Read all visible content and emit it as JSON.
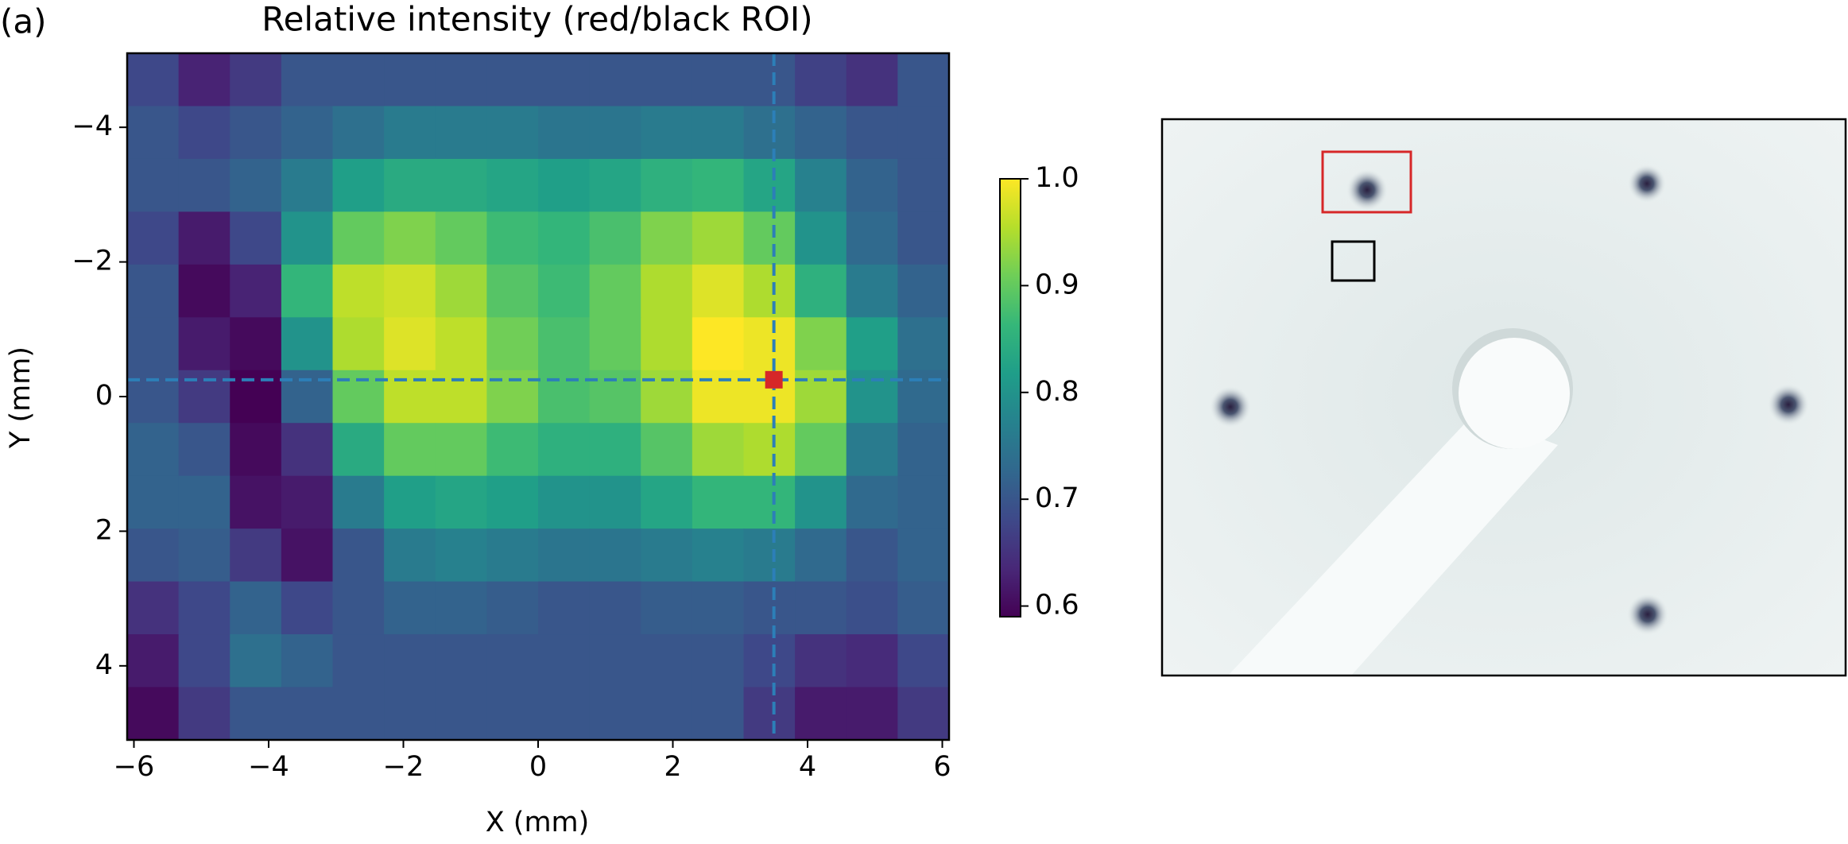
{
  "chart_data": {
    "type": "heatmap",
    "panel_label": "(a)",
    "title": "Relative intensity (red/black ROI)",
    "x_label": "X (mm)",
    "y_label": "Y (mm)",
    "xlim": [
      -6.1,
      6.1
    ],
    "ylim": [
      -5.1,
      5.1
    ],
    "xticks": [
      {
        "value": -6,
        "label": "−6"
      },
      {
        "value": -4,
        "label": "−4"
      },
      {
        "value": -2,
        "label": "−2"
      },
      0,
      2,
      4,
      6
    ],
    "yticks": [
      {
        "value": -4,
        "label": "−4"
      },
      {
        "value": -2,
        "label": "−2"
      },
      0,
      2,
      4
    ],
    "colormap": "viridis",
    "clim": [
      0.59,
      1.0
    ],
    "cticks": [
      0.6,
      0.7,
      0.8,
      0.9,
      {
        "value": 1,
        "label": "1.0"
      }
    ],
    "crosshair": {
      "x": 3.5,
      "y": -0.25,
      "color": "#2c7fb8",
      "marker_color": "#d62728"
    },
    "z": [
      [
        0.68,
        0.63,
        0.66,
        0.7,
        0.7,
        0.7,
        0.7,
        0.7,
        0.7,
        0.7,
        0.7,
        0.7,
        0.7,
        0.67,
        0.65,
        0.7
      ],
      [
        0.7,
        0.68,
        0.7,
        0.72,
        0.74,
        0.76,
        0.76,
        0.76,
        0.75,
        0.75,
        0.76,
        0.76,
        0.74,
        0.72,
        0.7,
        0.7
      ],
      [
        0.7,
        0.7,
        0.72,
        0.76,
        0.82,
        0.84,
        0.84,
        0.83,
        0.82,
        0.83,
        0.85,
        0.86,
        0.83,
        0.77,
        0.72,
        0.7
      ],
      [
        0.68,
        0.62,
        0.68,
        0.8,
        0.9,
        0.92,
        0.9,
        0.87,
        0.86,
        0.88,
        0.92,
        0.94,
        0.9,
        0.8,
        0.73,
        0.7
      ],
      [
        0.7,
        0.6,
        0.63,
        0.86,
        0.96,
        0.97,
        0.94,
        0.89,
        0.87,
        0.9,
        0.95,
        0.98,
        0.95,
        0.85,
        0.76,
        0.72
      ],
      [
        0.7,
        0.62,
        0.6,
        0.8,
        0.95,
        0.98,
        0.96,
        0.91,
        0.88,
        0.9,
        0.95,
        1.0,
        0.99,
        0.92,
        0.82,
        0.74
      ],
      [
        0.7,
        0.66,
        0.59,
        0.72,
        0.9,
        0.96,
        0.96,
        0.92,
        0.88,
        0.89,
        0.94,
        0.99,
        0.99,
        0.94,
        0.8,
        0.73
      ],
      [
        0.72,
        0.7,
        0.6,
        0.65,
        0.84,
        0.9,
        0.9,
        0.87,
        0.85,
        0.85,
        0.89,
        0.94,
        0.95,
        0.9,
        0.76,
        0.72
      ],
      [
        0.72,
        0.72,
        0.61,
        0.62,
        0.76,
        0.82,
        0.83,
        0.82,
        0.8,
        0.8,
        0.83,
        0.86,
        0.86,
        0.8,
        0.73,
        0.72
      ],
      [
        0.7,
        0.71,
        0.66,
        0.61,
        0.7,
        0.76,
        0.77,
        0.76,
        0.75,
        0.75,
        0.76,
        0.77,
        0.76,
        0.73,
        0.7,
        0.72
      ],
      [
        0.65,
        0.68,
        0.72,
        0.68,
        0.7,
        0.72,
        0.72,
        0.71,
        0.7,
        0.7,
        0.71,
        0.71,
        0.7,
        0.7,
        0.69,
        0.71
      ],
      [
        0.62,
        0.68,
        0.74,
        0.72,
        0.7,
        0.7,
        0.7,
        0.7,
        0.7,
        0.7,
        0.7,
        0.7,
        0.68,
        0.65,
        0.64,
        0.68
      ],
      [
        0.6,
        0.66,
        0.7,
        0.7,
        0.7,
        0.7,
        0.7,
        0.7,
        0.7,
        0.7,
        0.7,
        0.7,
        0.66,
        0.62,
        0.62,
        0.66
      ]
    ]
  }
}
